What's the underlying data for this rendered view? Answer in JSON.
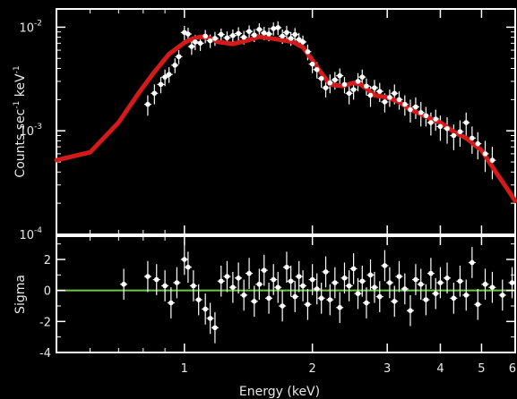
{
  "chart_data": [
    {
      "type": "scatter",
      "panel": "spectrum",
      "xlabel": "",
      "ylabel": "Counts sec⁻¹ keV⁻¹",
      "ylabel_parts": {
        "base": "Counts sec",
        "exp1": "-1",
        "mid": " keV",
        "exp2": "-1"
      },
      "xscale": "log",
      "yscale": "log",
      "xlim": [
        0.5,
        6
      ],
      "ylim": [
        0.0001,
        0.015
      ],
      "y_ticks": [
        {
          "value": 0.0001,
          "base": "10",
          "exp": "-4"
        },
        {
          "value": 0.001,
          "base": "10",
          "exp": "-3"
        },
        {
          "value": 0.01,
          "base": "10",
          "exp": "-2"
        }
      ],
      "colors": {
        "data": "#ffffff",
        "model": "#d41a1a",
        "axes": "#ffffff"
      },
      "series": [
        {
          "role": "data points with error bars",
          "color": "#ffffff",
          "x": [
            0.82,
            0.85,
            0.88,
            0.9,
            0.92,
            0.95,
            0.97,
            1.0,
            1.02,
            1.04,
            1.06,
            1.09,
            1.12,
            1.15,
            1.18,
            1.22,
            1.26,
            1.3,
            1.34,
            1.38,
            1.42,
            1.46,
            1.5,
            1.54,
            1.58,
            1.62,
            1.66,
            1.7,
            1.74,
            1.78,
            1.82,
            1.86,
            1.9,
            1.95,
            2.0,
            2.05,
            2.1,
            2.15,
            2.2,
            2.26,
            2.32,
            2.38,
            2.44,
            2.5,
            2.56,
            2.62,
            2.68,
            2.74,
            2.8,
            2.88,
            2.96,
            3.04,
            3.12,
            3.2,
            3.3,
            3.4,
            3.5,
            3.6,
            3.7,
            3.8,
            3.9,
            4.0,
            4.15,
            4.3,
            4.45,
            4.6,
            4.75,
            4.9,
            5.1,
            5.3
          ],
          "y": [
            0.0018,
            0.0023,
            0.0028,
            0.0033,
            0.0035,
            0.0043,
            0.0052,
            0.0089,
            0.0086,
            0.0065,
            0.0072,
            0.007,
            0.0082,
            0.0074,
            0.0078,
            0.0085,
            0.0079,
            0.0083,
            0.0087,
            0.008,
            0.0091,
            0.0084,
            0.0095,
            0.0088,
            0.0086,
            0.0097,
            0.0099,
            0.0082,
            0.0089,
            0.0078,
            0.0085,
            0.0076,
            0.0072,
            0.0058,
            0.0044,
            0.0039,
            0.0032,
            0.0026,
            0.0029,
            0.0031,
            0.0034,
            0.0028,
            0.0023,
            0.0025,
            0.003,
            0.0033,
            0.0027,
            0.0022,
            0.0026,
            0.0024,
            0.0019,
            0.0021,
            0.0023,
            0.002,
            0.0018,
            0.0016,
            0.0017,
            0.0015,
            0.0014,
            0.0012,
            0.0013,
            0.0011,
            0.00105,
            0.0009,
            0.00098,
            0.0012,
            0.00085,
            0.00075,
            0.0006,
            0.00052
          ],
          "yerr": [
            0.0004,
            0.0005,
            0.0005,
            0.0006,
            0.0006,
            0.0007,
            0.0008,
            0.0014,
            0.0013,
            0.0011,
            0.0012,
            0.0011,
            0.0012,
            0.0011,
            0.0012,
            0.0012,
            0.0012,
            0.0012,
            0.0013,
            0.0012,
            0.0013,
            0.0012,
            0.0014,
            0.0013,
            0.0013,
            0.0014,
            0.0015,
            0.0013,
            0.0014,
            0.0012,
            0.0013,
            0.0012,
            0.0011,
            0.001,
            0.0008,
            0.0007,
            0.0006,
            0.0005,
            0.0006,
            0.0006,
            0.0006,
            0.0005,
            0.0005,
            0.0005,
            0.0006,
            0.0006,
            0.0005,
            0.0005,
            0.0005,
            0.0005,
            0.0004,
            0.0004,
            0.0005,
            0.0004,
            0.0004,
            0.0004,
            0.0004,
            0.0004,
            0.0003,
            0.0003,
            0.0003,
            0.0003,
            0.0003,
            0.00025,
            0.00028,
            0.0003,
            0.00025,
            0.00022,
            0.0002,
            0.00018
          ]
        },
        {
          "role": "model curve",
          "color": "#d41a1a",
          "x": [
            0.5,
            0.6,
            0.7,
            0.78,
            0.85,
            0.92,
            1.0,
            1.05,
            1.1,
            1.15,
            1.2,
            1.3,
            1.4,
            1.5,
            1.6,
            1.7,
            1.8,
            1.9,
            2.0,
            2.1,
            2.2,
            2.35,
            2.5,
            2.6,
            2.7,
            2.8,
            3.0,
            3.2,
            3.4,
            3.6,
            3.8,
            4.0,
            4.3,
            4.6,
            5.0,
            5.4,
            5.8,
            6.0
          ],
          "y": [
            0.00052,
            0.00062,
            0.0012,
            0.0023,
            0.0037,
            0.0055,
            0.0071,
            0.0078,
            0.0081,
            0.0078,
            0.0072,
            0.0069,
            0.0074,
            0.0081,
            0.0078,
            0.0075,
            0.0072,
            0.0064,
            0.0048,
            0.0036,
            0.0028,
            0.0027,
            0.0029,
            0.0028,
            0.0025,
            0.0022,
            0.0021,
            0.0019,
            0.0016,
            0.00145,
            0.0013,
            0.0012,
            0.00098,
            0.00085,
            0.00065,
            0.0004,
            0.00026,
            0.00021
          ]
        }
      ]
    },
    {
      "type": "scatter",
      "panel": "residuals",
      "xlabel": "Energy (keV)",
      "ylabel": "Sigma",
      "xscale": "log",
      "xlim": [
        0.5,
        6
      ],
      "ylim": [
        -4,
        3.5
      ],
      "x_ticks": [
        {
          "value": 1,
          "label": "1"
        },
        {
          "value": 2,
          "label": "2"
        },
        {
          "value": 3,
          "label": "3"
        },
        {
          "value": 4,
          "label": "4"
        },
        {
          "value": 5,
          "label": "5"
        },
        {
          "value": 6,
          "label": "6"
        }
      ],
      "y_ticks": [
        {
          "value": -4,
          "label": "-4"
        },
        {
          "value": -2,
          "label": "-2"
        },
        {
          "value": 0,
          "label": "0"
        },
        {
          "value": 2,
          "label": "2"
        }
      ],
      "reference_line": {
        "y": 0,
        "color": "#6fc64a"
      },
      "colors": {
        "data": "#ffffff",
        "reference": "#6fc64a",
        "axes": "#ffffff"
      },
      "series": [
        {
          "role": "residuals",
          "color": "#ffffff",
          "x": [
            0.72,
            0.82,
            0.86,
            0.9,
            0.93,
            0.96,
            1.0,
            1.02,
            1.05,
            1.08,
            1.12,
            1.15,
            1.18,
            1.22,
            1.26,
            1.3,
            1.34,
            1.38,
            1.42,
            1.46,
            1.5,
            1.54,
            1.58,
            1.62,
            1.66,
            1.7,
            1.74,
            1.78,
            1.82,
            1.86,
            1.9,
            1.95,
            2.0,
            2.05,
            2.1,
            2.15,
            2.2,
            2.26,
            2.32,
            2.38,
            2.44,
            2.5,
            2.56,
            2.62,
            2.68,
            2.74,
            2.8,
            2.88,
            2.96,
            3.04,
            3.12,
            3.2,
            3.3,
            3.4,
            3.5,
            3.6,
            3.7,
            3.8,
            3.9,
            4.0,
            4.15,
            4.3,
            4.45,
            4.6,
            4.75,
            4.9,
            5.1,
            5.3,
            5.6,
            5.9
          ],
          "y": [
            0.4,
            0.9,
            0.7,
            0.3,
            -0.8,
            0.5,
            2.0,
            1.5,
            0.3,
            -0.6,
            -1.2,
            -1.8,
            -2.4,
            0.6,
            0.9,
            0.2,
            0.8,
            -0.3,
            1.1,
            -0.7,
            0.4,
            1.3,
            -0.5,
            0.7,
            0.2,
            -1.0,
            1.5,
            0.6,
            -0.4,
            0.9,
            0.3,
            -0.9,
            0.7,
            0.1,
            -0.5,
            1.2,
            -0.6,
            0.5,
            -1.1,
            0.8,
            0.3,
            1.4,
            -0.2,
            0.6,
            -0.8,
            1.0,
            0.2,
            -0.4,
            1.6,
            0.5,
            -0.7,
            0.9,
            0.1,
            -1.3,
            0.7,
            0.4,
            -0.6,
            1.1,
            -0.2,
            0.5,
            0.8,
            -0.5,
            0.6,
            -0.3,
            1.8,
            -0.9,
            0.4,
            0.2,
            -0.3,
            0.5
          ],
          "yerr": [
            1,
            1,
            1,
            1,
            1,
            1,
            1,
            1,
            1,
            1,
            1,
            1,
            1,
            1,
            1,
            1,
            1,
            1,
            1,
            1,
            1,
            1,
            1,
            1,
            1,
            1,
            1,
            1,
            1,
            1,
            1,
            1,
            1,
            1,
            1,
            1,
            1,
            1,
            1,
            1,
            1,
            1,
            1,
            1,
            1,
            1,
            1,
            1,
            1,
            1,
            1,
            1,
            1,
            1,
            1,
            1,
            1,
            1,
            1,
            1,
            1,
            1,
            1,
            1,
            1,
            1,
            1,
            1,
            1,
            1
          ]
        }
      ]
    }
  ]
}
